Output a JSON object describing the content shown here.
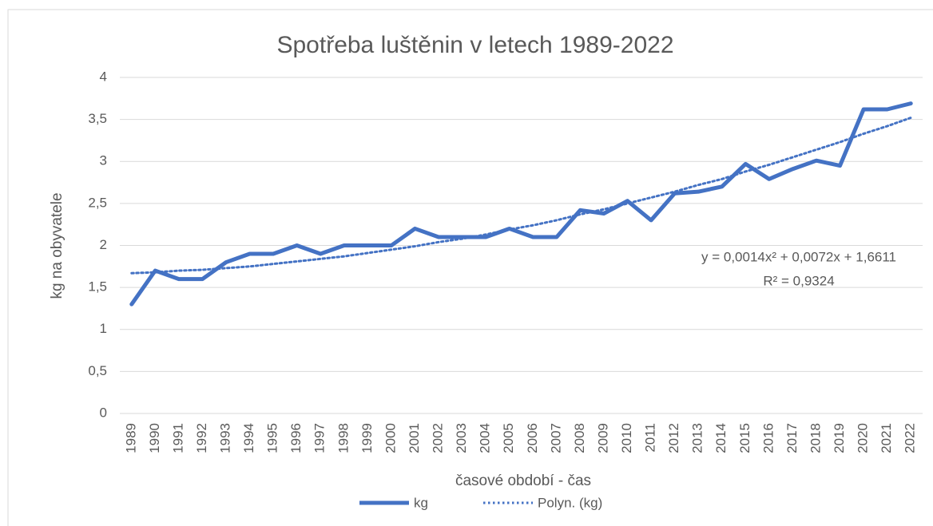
{
  "chart_data": {
    "type": "line",
    "title": "Spotřeba luštěnin v letech 1989-2022",
    "x_label": "časové období - čas",
    "y_label": "kg na obyvatele",
    "categories": [
      "1989",
      "1990",
      "1991",
      "1992",
      "1993",
      "1994",
      "1995",
      "1996",
      "1997",
      "1998",
      "1999",
      "2000",
      "2001",
      "2002",
      "2003",
      "2004",
      "2005",
      "2006",
      "2007",
      "2008",
      "2009",
      "2010",
      "2011",
      "2012",
      "2013",
      "2014",
      "2015",
      "2016",
      "2017",
      "2018",
      "2019",
      "2020",
      "2021",
      "2022"
    ],
    "series": [
      {
        "name": "kg",
        "color": "#4472c4",
        "style": "solid",
        "values": [
          1.3,
          1.7,
          1.6,
          1.6,
          1.8,
          1.9,
          1.9,
          2.0,
          1.9,
          2.0,
          2.0,
          2.0,
          2.2,
          2.1,
          2.1,
          2.1,
          2.2,
          2.1,
          2.1,
          2.42,
          2.38,
          2.53,
          2.3,
          2.62,
          2.64,
          2.7,
          2.97,
          2.79,
          2.91,
          3.01,
          2.95,
          3.62,
          3.62,
          3.69
        ]
      },
      {
        "name": "Polyn. (kg)",
        "color": "#4472c4",
        "style": "dotted",
        "values": [
          1.67,
          1.68,
          1.7,
          1.71,
          1.73,
          1.75,
          1.78,
          1.81,
          1.84,
          1.87,
          1.91,
          1.95,
          1.99,
          2.04,
          2.08,
          2.13,
          2.19,
          2.24,
          2.3,
          2.37,
          2.43,
          2.5,
          2.57,
          2.64,
          2.72,
          2.79,
          2.88,
          2.96,
          3.05,
          3.14,
          3.23,
          3.33,
          3.42,
          3.52
        ]
      }
    ],
    "annotations": [
      "y = 0,0014x² + 0,0072x + 1,6611",
      "R² = 0,9324"
    ],
    "ylim": [
      0,
      4
    ],
    "yticks": [
      0,
      {
        "value": 0.5,
        "label": "0,5"
      },
      1,
      {
        "value": 1.5,
        "label": "1,5"
      },
      2,
      {
        "value": 2.5,
        "label": "2,5"
      },
      3,
      {
        "value": 3.5,
        "label": "3,5"
      },
      4
    ],
    "grid": true,
    "legend": "bottom"
  }
}
